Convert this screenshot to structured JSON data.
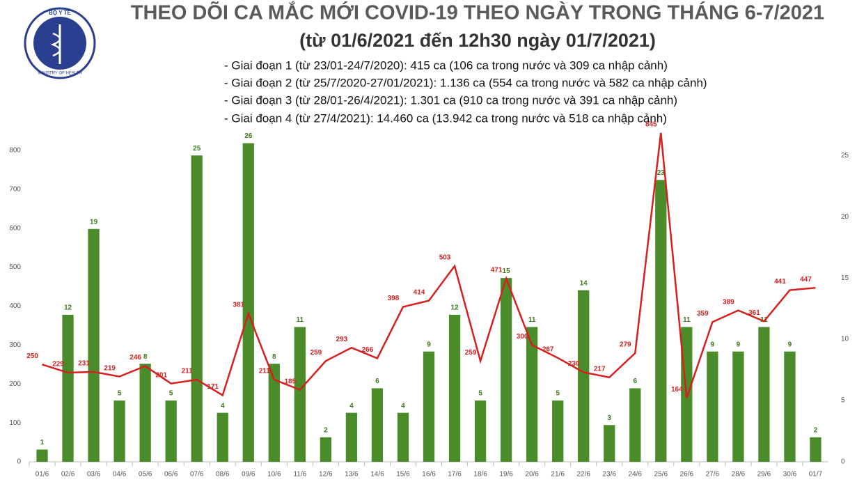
{
  "logo": {
    "top": "BỘ Y TẾ",
    "bottom": "MINISTRY OF HEALTH"
  },
  "chart_data": {
    "type": "bar-line",
    "title": "THEO DÕI CA MẮC MỚI COVID-19 THEO NGÀY TRONG THÁNG 6-7/2021",
    "subtitle": "(từ 01/6/2021 đến 12h30 ngày 01/7/2021)",
    "notes": [
      "- Giai đoạn 1 (từ 23/01-24/7/2020): 415 ca (106 ca trong nước và 309 ca nhập cảnh)",
      "- Giai đoạn 2 (từ 25/7/2020-27/01/2021): 1.136 ca (554 ca trong nước và 582 ca nhập cảnh)",
      "- Giai đoạn 3 (từ 28/01-26/4/2021): 1.301 ca (910 ca trong nước và 391 ca nhập cảnh)",
      "- Giai đoạn 4 (từ 27/4/2021): 14.460 ca (13.942 ca trong nước và 518 ca nhập cảnh)"
    ],
    "categories": [
      "01/6",
      "02/6",
      "03/6",
      "04/6",
      "05/6",
      "06/6",
      "07/6",
      "08/6",
      "09/6",
      "10/6",
      "11/6",
      "12/6",
      "13/6",
      "14/6",
      "15/6",
      "16/6",
      "17/6",
      "18/6",
      "19/6",
      "20/6",
      "21/6",
      "22/6",
      "23/6",
      "24/6",
      "25/6",
      "26/6",
      "27/6",
      "28/6",
      "29/6",
      "30/6",
      "01/7"
    ],
    "series": [
      {
        "type": "bar",
        "axis": "y2",
        "color": "#4a8c2a",
        "values": [
          1,
          12,
          19,
          5,
          8,
          5,
          25,
          4,
          26,
          8,
          11,
          2,
          4,
          6,
          4,
          9,
          12,
          5,
          15,
          11,
          5,
          14,
          3,
          6,
          23,
          11,
          9,
          9,
          11,
          9,
          2
        ]
      },
      {
        "type": "line",
        "axis": "y",
        "color": "#d62020",
        "values": [
          250,
          229,
          231,
          219,
          246,
          201,
          211,
          171,
          381,
          211,
          185,
          259,
          293,
          266,
          398,
          414,
          503,
          259,
          471,
          300,
          267,
          230,
          217,
          279,
          845,
          164,
          359,
          389,
          361,
          441,
          447
        ]
      }
    ],
    "ylim": [
      0,
      850
    ],
    "yticks": [
      0,
      100,
      200,
      300,
      400,
      500,
      600,
      700,
      800
    ],
    "y2lim": [
      0,
      27
    ],
    "y2ticks": [
      0,
      5,
      10,
      15,
      20,
      25
    ]
  }
}
